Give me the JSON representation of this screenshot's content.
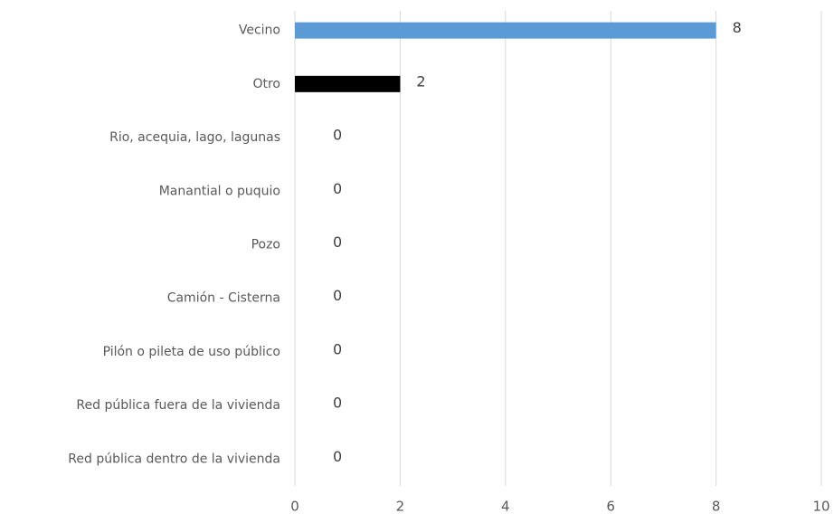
{
  "chart_data": {
    "type": "barh",
    "categories": [
      "Vecino",
      "Otro",
      "Rio, acequia, lago, lagunas",
      "Manantial o puquio",
      "Pozo",
      "Camión - Cisterna",
      "Pilón o pileta de uso público",
      "Red pública fuera de la vivienda",
      "Red pública dentro de la vivienda"
    ],
    "values": [
      8,
      2,
      0,
      0,
      0,
      0,
      0,
      0,
      0
    ],
    "colors": [
      "#5b9bd5",
      "#000000",
      "#5b9bd5",
      "#5b9bd5",
      "#5b9bd5",
      "#5b9bd5",
      "#5b9bd5",
      "#5b9bd5",
      "#5b9bd5"
    ],
    "xlim": [
      0,
      10
    ],
    "xticks": [
      0,
      2,
      4,
      6,
      8,
      10
    ],
    "grid": true
  }
}
